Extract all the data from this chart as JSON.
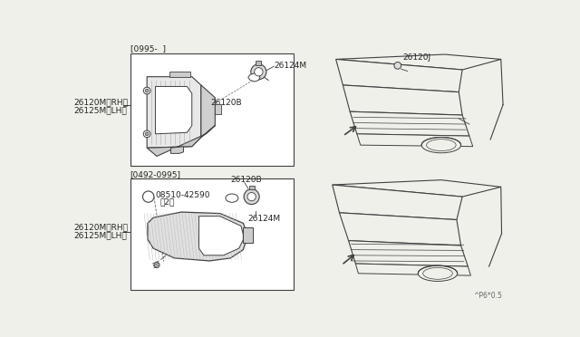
{
  "bg_color": "#f0f0eb",
  "line_color": "#404040",
  "text_color": "#222222",
  "title_bottom": "^P6*0.5",
  "top_box_label": "[0995-  ]",
  "bottom_box_label": "[0492-0995]",
  "top_left_label1": "26120M〈RH〉",
  "top_left_label2": "26125M〈LH〉",
  "bottom_left_label1": "26120M〈RH〉",
  "bottom_left_label2": "26125M〈LH〉",
  "label_26124M": "26124M",
  "label_26120B": "26120B",
  "label_26120B_bot": "26120B",
  "label_26124M_bot": "26124M",
  "label_screw": "08510-42590",
  "label_screw2": "（2）",
  "label_26120J": "26120J",
  "font_size": 6.5,
  "diagram_bg": "#ffffff"
}
